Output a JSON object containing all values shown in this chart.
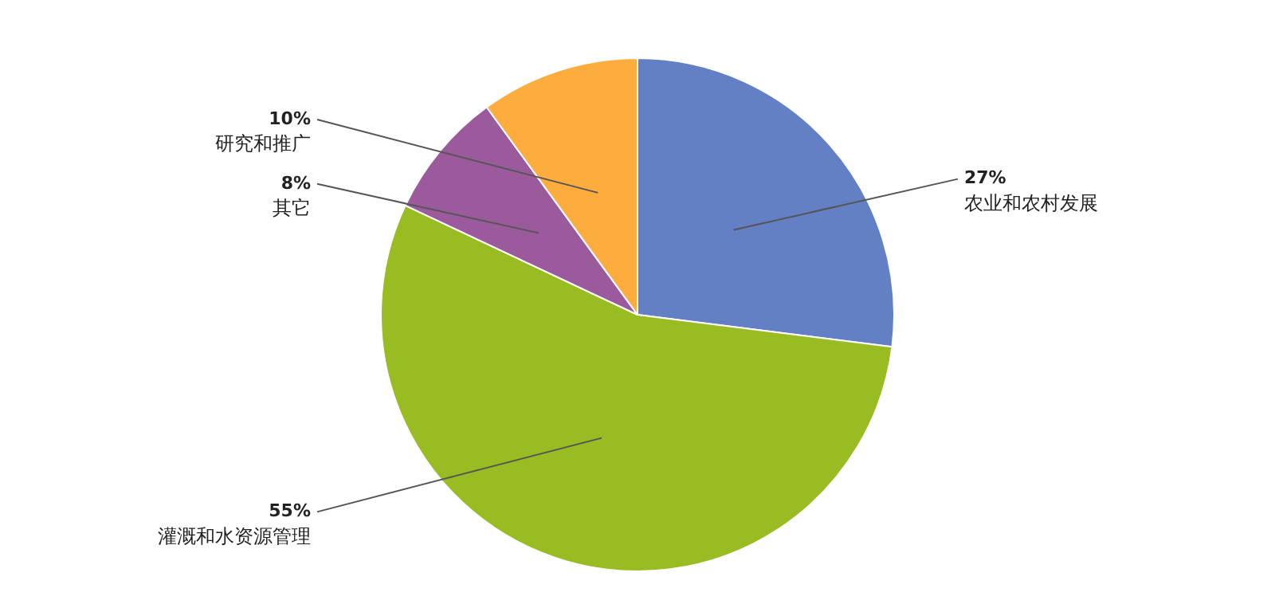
{
  "chart_data": {
    "type": "pie",
    "categories": [
      "农业和农村发展",
      "灌溉和水资源管理",
      "其它",
      "研究和推广"
    ],
    "values": [
      27,
      55,
      8,
      10
    ],
    "colors": [
      "#6380c4",
      "#98bc22",
      "#9b5a9b",
      "#fdad3d"
    ],
    "value_labels": [
      "27%",
      "55%",
      "8%",
      "10%"
    ],
    "legend": false
  }
}
